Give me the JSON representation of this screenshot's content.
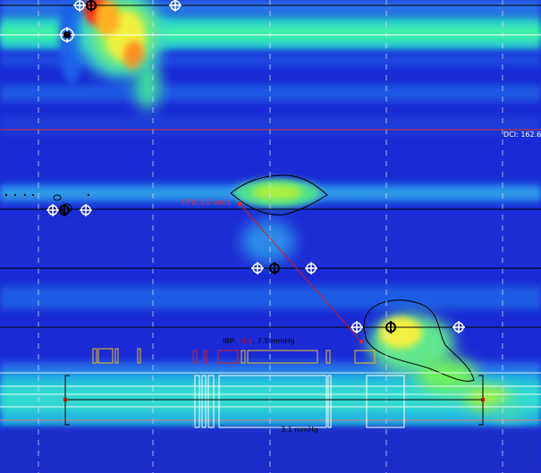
{
  "labels": {
    "cfv": "CFV: 3.0 cm/s",
    "dci": "DCI: 162.6",
    "ibp_prefix": "IBP: ",
    "ibp_low": "-3.9",
    "ibp_sep": ", ",
    "ibp_high": "7.9 mmHg",
    "pressure": "3.1 mmHg"
  },
  "colors": {
    "background": "#1a2bd6",
    "cfv_line": "#d81a1a",
    "isobar_contour": "#000000"
  }
}
